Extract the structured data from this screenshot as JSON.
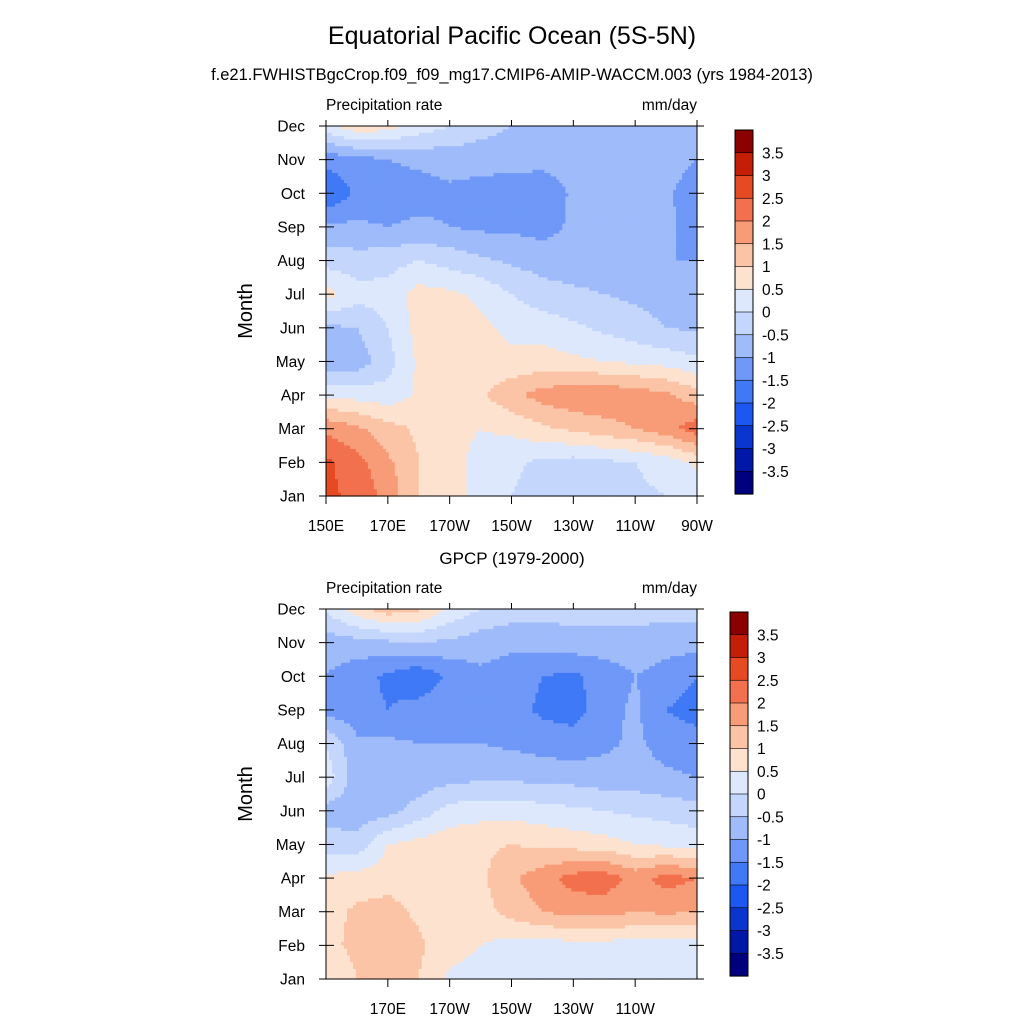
{
  "title": "Equatorial Pacific Ocean (5S-5N)",
  "subtitle": "f.e21.FWHISTBgcCrop.f09_f09_mg17.CMIP6-AMIP-WACCM.003 (yrs 1984-2013)",
  "chart_data": [
    {
      "type": "heatmap",
      "title": "",
      "left_label": "Precipitation rate",
      "right_label": "mm/day",
      "ylabel": "Month",
      "xlabel": "",
      "x_ticks": [
        "150E",
        "170E",
        "170W",
        "150W",
        "130W",
        "110W",
        "90W"
      ],
      "y_ticks": [
        "Jan",
        "Feb",
        "Mar",
        "Apr",
        "May",
        "Jun",
        "Jul",
        "Aug",
        "Sep",
        "Oct",
        "Nov",
        "Dec"
      ],
      "x_range": [
        150,
        270
      ],
      "y_range": [
        1,
        12
      ],
      "colorbar_labels": [
        "3.5",
        "3",
        "2.5",
        "2",
        "1.5",
        "1",
        "0.5",
        "0",
        "-0.5",
        "-1",
        "-1.5",
        "-2",
        "-2.5",
        "-3",
        "-3.5"
      ],
      "levels": [
        -3.5,
        -3,
        -2.5,
        -2,
        -1.5,
        -1,
        -0.5,
        0,
        0.5,
        1,
        1.5,
        2,
        2.5,
        3,
        3.5
      ],
      "colors": [
        "#00007f",
        "#0018a8",
        "#0a35cf",
        "#1b57f0",
        "#3f79f6",
        "#6f98f8",
        "#9fbbfa",
        "#c4d6fc",
        "#dde8fd",
        "#fde3cf",
        "#fbc4a6",
        "#f89c78",
        "#f2704d",
        "#e64a22",
        "#c41f06",
        "#8b0000"
      ],
      "values_x": [
        150,
        160,
        170,
        180,
        190,
        200,
        210,
        220,
        230,
        240,
        250,
        260,
        270
      ],
      "values": [
        [
          2.6,
          2.4,
          1.8,
          1.0,
          0.6,
          0.4,
          0.0,
          -0.2,
          -0.2,
          -0.1,
          -0.1,
          0.0,
          0.1
        ],
        [
          2.6,
          2.2,
          1.6,
          1.0,
          0.6,
          0.4,
          0.1,
          -0.1,
          -0.2,
          -0.1,
          0.0,
          0.2,
          0.6
        ],
        [
          1.9,
          1.6,
          1.2,
          0.9,
          0.6,
          0.5,
          0.6,
          0.9,
          1.1,
          1.3,
          1.5,
          1.8,
          2.3
        ],
        [
          0.4,
          0.3,
          0.2,
          0.6,
          0.8,
          0.9,
          1.4,
          1.7,
          1.9,
          1.9,
          1.8,
          1.6,
          1.2
        ],
        [
          -0.9,
          -0.8,
          -0.2,
          0.6,
          0.8,
          0.6,
          0.6,
          0.7,
          0.6,
          0.5,
          0.4,
          0.3,
          0.1
        ],
        [
          -0.6,
          -0.5,
          0.0,
          0.7,
          0.8,
          0.6,
          0.4,
          0.3,
          0.1,
          -0.1,
          -0.3,
          -0.5,
          -0.6
        ],
        [
          0.7,
          0.2,
          0.2,
          0.7,
          0.6,
          0.4,
          0.0,
          -0.3,
          -0.4,
          -0.5,
          -0.6,
          -0.7,
          -0.8
        ],
        [
          -0.2,
          -0.3,
          -0.2,
          0.0,
          -0.2,
          -0.4,
          -0.6,
          -0.7,
          -0.8,
          -0.8,
          -0.9,
          -1.0,
          -1.0
        ],
        [
          -0.9,
          -0.9,
          -1.0,
          -0.9,
          -1.0,
          -1.1,
          -1.1,
          -1.2,
          -0.9,
          -0.8,
          -0.8,
          -0.9,
          -1.2
        ],
        [
          -2.0,
          -1.4,
          -1.3,
          -1.2,
          -1.1,
          -1.2,
          -1.3,
          -1.4,
          -0.9,
          -0.8,
          -0.8,
          -0.9,
          -1.3
        ],
        [
          -1.3,
          -1.2,
          -1.0,
          -0.9,
          -0.8,
          -0.8,
          -0.8,
          -0.8,
          -0.7,
          -0.7,
          -0.7,
          -0.8,
          -1.0
        ],
        [
          0.3,
          0.9,
          0.7,
          0.3,
          0.0,
          -0.3,
          -0.5,
          -0.6,
          -0.6,
          -0.6,
          -0.6,
          -0.6,
          -0.6
        ]
      ]
    },
    {
      "type": "heatmap",
      "title": "GPCP (1979-2000)",
      "left_label": "Precipitation rate",
      "right_label": "mm/day",
      "ylabel": "Month",
      "xlabel": "",
      "x_ticks": [
        "170E",
        "170W",
        "150W",
        "130W",
        "110W"
      ],
      "y_ticks": [
        "Jan",
        "Feb",
        "Mar",
        "Apr",
        "May",
        "Jun",
        "Jul",
        "Aug",
        "Sep",
        "Oct",
        "Nov",
        "Dec"
      ],
      "x_range": [
        150,
        270
      ],
      "y_range": [
        1,
        12
      ],
      "colorbar_labels": [
        "3.5",
        "3",
        "2.5",
        "2",
        "1.5",
        "1",
        "0.5",
        "0",
        "-0.5",
        "-1",
        "-1.5",
        "-2",
        "-2.5",
        "-3",
        "-3.5"
      ],
      "levels": [
        -3.5,
        -3,
        -2.5,
        -2,
        -1.5,
        -1,
        -0.5,
        0,
        0.5,
        1,
        1.5,
        2,
        2.5,
        3,
        3.5
      ],
      "colors": [
        "#00007f",
        "#0018a8",
        "#0a35cf",
        "#1b57f0",
        "#3f79f6",
        "#6f98f8",
        "#9fbbfa",
        "#c4d6fc",
        "#dde8fd",
        "#fde3cf",
        "#fbc4a6",
        "#f89c78",
        "#f2704d",
        "#e64a22",
        "#c41f06",
        "#8b0000"
      ],
      "values_x": [
        150,
        160,
        170,
        180,
        190,
        200,
        210,
        220,
        230,
        240,
        250,
        260,
        270
      ],
      "values": [
        [
          0.6,
          1.0,
          1.2,
          1.0,
          0.4,
          0.3,
          0.2,
          0.1,
          0.1,
          0.1,
          0.1,
          0.1,
          0.0
        ],
        [
          0.9,
          1.1,
          1.2,
          1.1,
          0.7,
          0.5,
          0.3,
          0.3,
          0.3,
          0.3,
          0.3,
          0.2,
          0.2
        ],
        [
          0.8,
          1.1,
          1.2,
          0.9,
          0.6,
          0.8,
          1.2,
          1.5,
          1.7,
          1.7,
          1.5,
          1.6,
          1.5
        ],
        [
          0.6,
          0.7,
          0.8,
          0.7,
          0.7,
          0.9,
          1.4,
          1.8,
          2.2,
          2.3,
          1.8,
          2.2,
          2.0
        ],
        [
          -0.3,
          -0.3,
          0.5,
          0.7,
          0.8,
          0.9,
          1.0,
          0.9,
          0.8,
          0.7,
          0.5,
          0.4,
          0.3
        ],
        [
          -0.7,
          -0.8,
          -0.7,
          -0.3,
          0.2,
          0.3,
          0.3,
          0.2,
          0.1,
          0.0,
          -0.1,
          -0.2,
          -0.3
        ],
        [
          0.3,
          -0.8,
          -0.8,
          -0.8,
          -0.7,
          -0.6,
          -0.6,
          -0.7,
          -0.7,
          -0.8,
          -0.8,
          -0.9,
          -1.0
        ],
        [
          0.0,
          -0.9,
          -0.9,
          -1.0,
          -1.0,
          -1.0,
          -1.1,
          -1.2,
          -1.3,
          -1.1,
          -0.9,
          -1.2,
          -1.3
        ],
        [
          -1.2,
          -1.3,
          -1.5,
          -1.3,
          -1.1,
          -1.1,
          -1.3,
          -1.6,
          -1.7,
          -1.2,
          -0.9,
          -1.5,
          -1.7
        ],
        [
          -1.0,
          -1.3,
          -1.6,
          -1.9,
          -1.4,
          -1.1,
          -1.2,
          -1.5,
          -1.6,
          -1.3,
          -1.0,
          -1.2,
          -1.5
        ],
        [
          -0.8,
          -0.7,
          -0.6,
          -0.5,
          -0.6,
          -0.8,
          -0.9,
          -0.8,
          -0.7,
          -0.7,
          -0.7,
          -0.8,
          -0.8
        ],
        [
          0.1,
          0.8,
          1.3,
          1.1,
          0.4,
          0.0,
          -0.2,
          -0.3,
          -0.3,
          -0.3,
          -0.3,
          -0.3,
          -0.3
        ]
      ]
    }
  ]
}
